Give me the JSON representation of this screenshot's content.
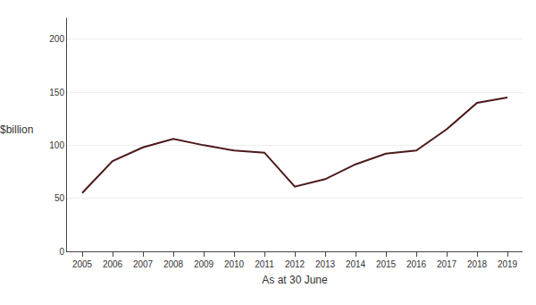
{
  "chart_data": {
    "type": "line",
    "x": [
      2005,
      2006,
      2007,
      2008,
      2009,
      2010,
      2011,
      2012,
      2013,
      2014,
      2015,
      2016,
      2017,
      2018,
      2019
    ],
    "values": [
      55,
      85,
      98,
      106,
      100,
      95,
      93,
      61,
      68,
      82,
      92,
      95,
      115,
      140,
      145
    ],
    "color": "#4d1a1a",
    "xlabel": "As at 30 June",
    "ylabel": "$billion",
    "xlim": [
      2004.5,
      2019.5
    ],
    "xticks": [
      2005,
      2006,
      2007,
      2008,
      2009,
      2010,
      2011,
      2012,
      2013,
      2014,
      2015,
      2016,
      2017,
      2018,
      2019
    ],
    "ylim": [
      0,
      220
    ],
    "yticks": [
      0,
      50,
      100,
      150,
      200
    ],
    "grid": true
  }
}
